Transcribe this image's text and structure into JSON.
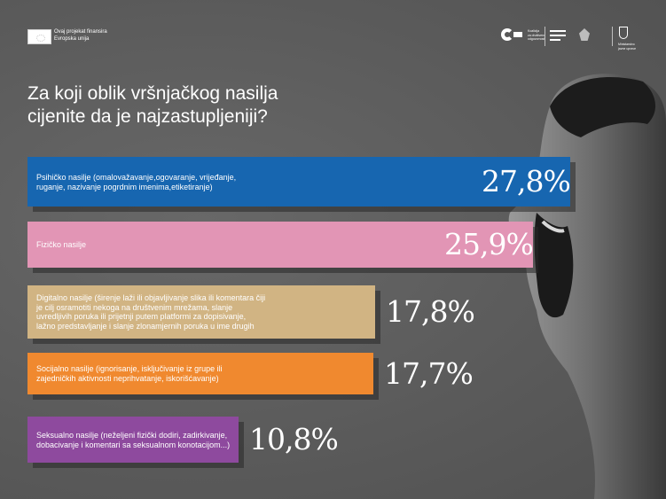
{
  "header": {
    "eu_text": [
      "Ovaj projekat finansira",
      "Evropska unija"
    ],
    "partner_logo_text": [
      "Koalicija",
      "za društvenu",
      "odgovornost"
    ],
    "ministry_text": [
      "Ministarstvo",
      "javne uprave"
    ]
  },
  "colors": {
    "background": "#5f5f5f",
    "bar_colors": [
      "#1766b0",
      "#e295b5",
      "#d1b483",
      "#f0892f",
      "#8e4a9e"
    ]
  },
  "chart_data": {
    "type": "bar",
    "orientation": "horizontal",
    "title": [
      "Za koji oblik vršnjačkog nasilja",
      "cijenite da je najzastupljeniji?"
    ],
    "categories": [
      [
        "Psihičko nasilje (omalovažavanje,ogovaranje, vrijeđanje,",
        "ruganje, nazivanje pogrdnim imenima,etiketiranje)"
      ],
      [
        "Fizičko nasilje"
      ],
      [
        "Digitalno nasilje (širenje laži ili objavljivanje slika ili komentara čiji",
        "je cilj osramotiti nekoga na društvenim mrežama, slanje",
        "uvredljivih poruka ili prijetnji putem platformi za dopisivanje,",
        "lažno predstavljanje i slanje zlonamjernih poruka u ime drugih"
      ],
      [
        "Socijalno nasilje (ignorisanje, isključivanje iz grupe ili",
        "zajedničkih aktivnosti neprihvatanje, iskorišćavanje)"
      ],
      [
        "Seksualno nasilje (neželjeni fizički dodiri, zadirkivanje,",
        "dobacivanje i komentari sa seksualnom konotacijom...)"
      ]
    ],
    "values": [
      27.8,
      25.9,
      17.8,
      17.7,
      10.8
    ],
    "value_labels": [
      "27,8%",
      "25,9%",
      "17,8%",
      "17,7%",
      "10,8%"
    ],
    "xlim": [
      0,
      27.8
    ],
    "grid": false,
    "legend": "none"
  }
}
